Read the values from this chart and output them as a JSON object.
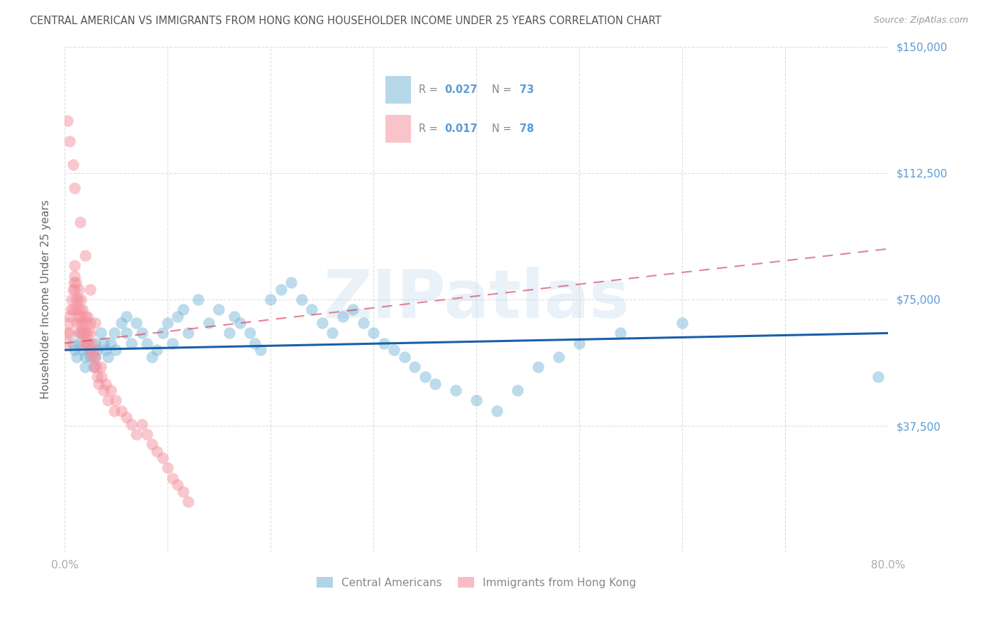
{
  "title": "CENTRAL AMERICAN VS IMMIGRANTS FROM HONG KONG HOUSEHOLDER INCOME UNDER 25 YEARS CORRELATION CHART",
  "source": "Source: ZipAtlas.com",
  "ylabel": "Householder Income Under 25 years",
  "yticks": [
    0,
    37500,
    75000,
    112500,
    150000
  ],
  "ytick_labels": [
    "",
    "$37,500",
    "$75,000",
    "$112,500",
    "$150,000"
  ],
  "xmin": 0.0,
  "xmax": 0.8,
  "ymin": 0,
  "ymax": 150000,
  "watermark": "ZIPatlas",
  "blue_color": "#7ab8d8",
  "pink_color": "#f4929e",
  "blue_line_color": "#1a5fa8",
  "pink_line_color": "#d44060",
  "legend_blue_label": "Central Americans",
  "legend_pink_label": "Immigrants from Hong Kong",
  "blue_R": "0.027",
  "blue_N": "73",
  "pink_R": "0.017",
  "pink_N": "78",
  "blue_x": [
    0.008,
    0.01,
    0.012,
    0.015,
    0.015,
    0.018,
    0.02,
    0.02,
    0.022,
    0.025,
    0.025,
    0.028,
    0.03,
    0.03,
    0.032,
    0.035,
    0.038,
    0.04,
    0.042,
    0.045,
    0.048,
    0.05,
    0.055,
    0.06,
    0.06,
    0.065,
    0.07,
    0.075,
    0.08,
    0.085,
    0.09,
    0.095,
    0.1,
    0.105,
    0.11,
    0.115,
    0.12,
    0.13,
    0.14,
    0.15,
    0.16,
    0.165,
    0.17,
    0.18,
    0.185,
    0.19,
    0.2,
    0.21,
    0.22,
    0.23,
    0.24,
    0.25,
    0.26,
    0.27,
    0.28,
    0.29,
    0.3,
    0.31,
    0.32,
    0.33,
    0.34,
    0.35,
    0.36,
    0.38,
    0.4,
    0.42,
    0.44,
    0.46,
    0.48,
    0.5,
    0.54,
    0.6,
    0.79
  ],
  "blue_y": [
    62000,
    60000,
    58000,
    65000,
    62000,
    60000,
    58000,
    55000,
    62000,
    60000,
    58000,
    55000,
    62000,
    58000,
    60000,
    65000,
    62000,
    60000,
    58000,
    62000,
    65000,
    60000,
    68000,
    70000,
    65000,
    62000,
    68000,
    65000,
    62000,
    58000,
    60000,
    65000,
    68000,
    62000,
    70000,
    72000,
    65000,
    75000,
    68000,
    72000,
    65000,
    70000,
    68000,
    65000,
    62000,
    60000,
    75000,
    78000,
    80000,
    75000,
    72000,
    68000,
    65000,
    70000,
    72000,
    68000,
    65000,
    62000,
    60000,
    58000,
    55000,
    52000,
    50000,
    48000,
    45000,
    42000,
    48000,
    55000,
    58000,
    62000,
    65000,
    68000,
    52000
  ],
  "pink_x": [
    0.002,
    0.003,
    0.004,
    0.005,
    0.005,
    0.006,
    0.007,
    0.008,
    0.008,
    0.009,
    0.01,
    0.01,
    0.01,
    0.011,
    0.011,
    0.012,
    0.012,
    0.013,
    0.013,
    0.014,
    0.014,
    0.015,
    0.015,
    0.016,
    0.016,
    0.017,
    0.017,
    0.018,
    0.018,
    0.019,
    0.02,
    0.02,
    0.021,
    0.021,
    0.022,
    0.022,
    0.023,
    0.024,
    0.025,
    0.025,
    0.026,
    0.027,
    0.028,
    0.029,
    0.03,
    0.031,
    0.032,
    0.033,
    0.035,
    0.036,
    0.038,
    0.04,
    0.042,
    0.045,
    0.048,
    0.05,
    0.055,
    0.06,
    0.065,
    0.07,
    0.075,
    0.08,
    0.085,
    0.09,
    0.095,
    0.1,
    0.105,
    0.11,
    0.115,
    0.12,
    0.003,
    0.005,
    0.008,
    0.01,
    0.015,
    0.02,
    0.025,
    0.03
  ],
  "pink_y": [
    62000,
    65000,
    68000,
    70000,
    65000,
    72000,
    75000,
    78000,
    72000,
    80000,
    82000,
    78000,
    85000,
    80000,
    75000,
    72000,
    68000,
    75000,
    70000,
    65000,
    78000,
    72000,
    68000,
    75000,
    70000,
    65000,
    72000,
    68000,
    65000,
    62000,
    65000,
    70000,
    68000,
    62000,
    70000,
    65000,
    62000,
    60000,
    68000,
    65000,
    62000,
    58000,
    60000,
    55000,
    58000,
    55000,
    52000,
    50000,
    55000,
    52000,
    48000,
    50000,
    45000,
    48000,
    42000,
    45000,
    42000,
    40000,
    38000,
    35000,
    38000,
    35000,
    32000,
    30000,
    28000,
    25000,
    22000,
    20000,
    18000,
    15000,
    128000,
    122000,
    115000,
    108000,
    98000,
    88000,
    78000,
    68000
  ]
}
